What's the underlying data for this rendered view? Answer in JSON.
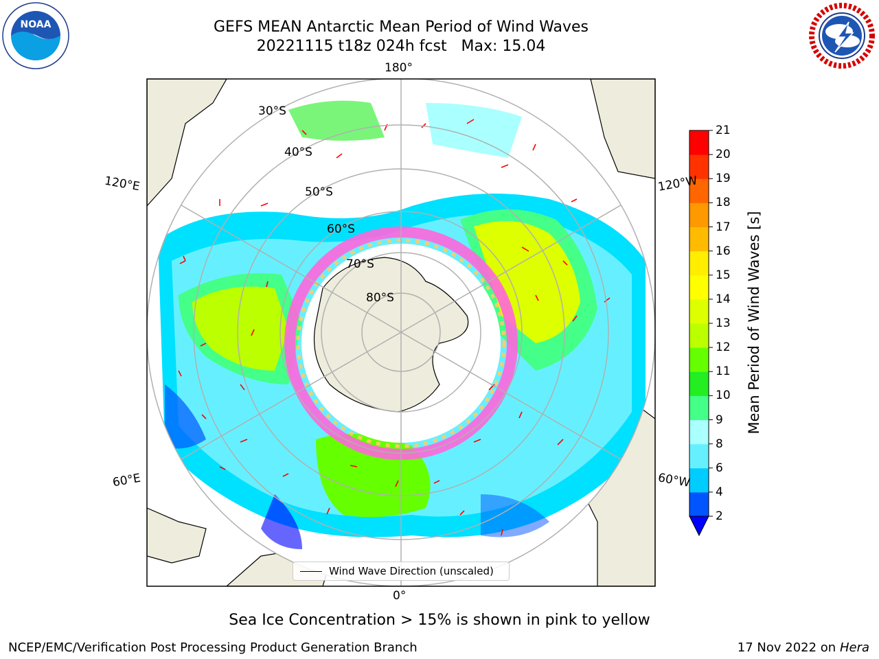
{
  "header": {
    "title_line1": "GEFS MEAN Antarctic Mean Period of Wind Waves",
    "title_line2": "20221115 t18z 024h fcst   Max: 15.04"
  },
  "logos": {
    "left": "noaa-logo",
    "right": "nws-logo"
  },
  "map": {
    "projection": "south-polar-stereographic",
    "longitude_labels": {
      "top": "180°",
      "bottom": "0°",
      "upper_left": "120°E",
      "upper_right": "120°W",
      "lower_left": "60°E",
      "lower_right": "60°W"
    },
    "latitude_labels": [
      "30°S",
      "40°S",
      "50°S",
      "60°S",
      "70°S",
      "80°S"
    ],
    "legend_entry": "Wind Wave Direction (unscaled)",
    "land_color": "#eeecdc",
    "arrow_color": "#ff0000",
    "graticule_color": "#b0b0b0"
  },
  "colorbar": {
    "title": "Mean Period of Wind Waves [s]",
    "ticks": [
      "2",
      "4",
      "6",
      "8",
      "9",
      "10",
      "11",
      "12",
      "13",
      "14",
      "15",
      "16",
      "17",
      "18",
      "19",
      "20",
      "21"
    ],
    "colors": [
      "#0055ff",
      "#00ccff",
      "#66f0ff",
      "#aaffff",
      "#44ff88",
      "#22ee22",
      "#66ff00",
      "#bbff00",
      "#ddff00",
      "#ffff00",
      "#ffee00",
      "#ffbb00",
      "#ff9900",
      "#ff6600",
      "#ff3300",
      "#ff0000"
    ],
    "under_color": "#0000ff"
  },
  "footer": {
    "note": "Sea Ice Concentration > 15% is shown in pink to yellow",
    "credit": "NCEP/EMC/Verification Post Processing Product Generation Branch",
    "date": "17 Nov 2022 on",
    "host": "Hera"
  }
}
